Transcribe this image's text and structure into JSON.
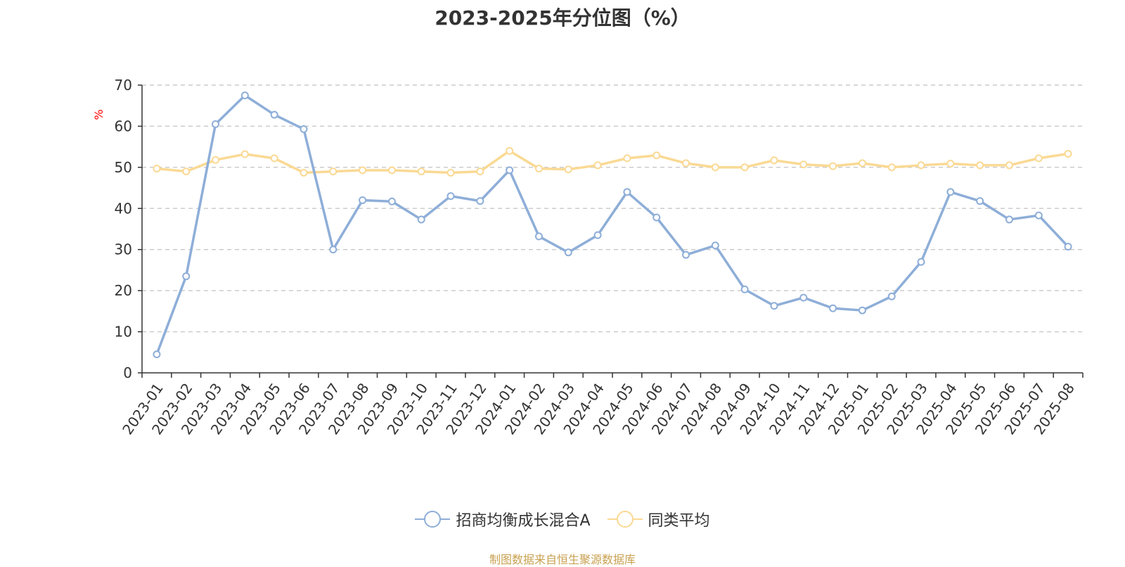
{
  "chart_data": {
    "type": "line",
    "title": "2023-2025年分位图（%）",
    "ylabel": "%",
    "xlabel": "",
    "ylim": [
      0,
      70
    ],
    "yticks": [
      0,
      10,
      20,
      30,
      40,
      50,
      60,
      70
    ],
    "grid": true,
    "legend_position": "bottom",
    "categories": [
      "2023-01",
      "2023-02",
      "2023-03",
      "2023-04",
      "2023-05",
      "2023-06",
      "2023-07",
      "2023-08",
      "2023-09",
      "2023-10",
      "2023-11",
      "2023-12",
      "2024-01",
      "2024-02",
      "2024-03",
      "2024-04",
      "2024-05",
      "2024-06",
      "2024-07",
      "2024-08",
      "2024-09",
      "2024-10",
      "2024-11",
      "2024-12",
      "2025-01",
      "2025-02",
      "2025-03",
      "2025-04",
      "2025-05",
      "2025-06",
      "2025-07",
      "2025-08"
    ],
    "series": [
      {
        "name": "招商均衡成长混合A",
        "color": "#8eaed8",
        "values": [
          4.5,
          23.5,
          60.5,
          67.5,
          62.8,
          59.3,
          30.0,
          42.0,
          41.7,
          37.3,
          43.0,
          41.8,
          49.3,
          33.2,
          29.3,
          33.5,
          44.0,
          37.8,
          28.7,
          31.0,
          20.3,
          16.3,
          18.3,
          15.7,
          15.2,
          18.6,
          27.0,
          44.0,
          41.8,
          37.3,
          38.3,
          30.7
        ]
      },
      {
        "name": "同类平均",
        "color": "#fad994",
        "values": [
          49.7,
          49.0,
          51.8,
          53.2,
          52.2,
          48.7,
          49.0,
          49.3,
          49.3,
          49.0,
          48.7,
          49.0,
          54.0,
          49.7,
          49.5,
          50.5,
          52.2,
          52.9,
          51.0,
          50.0,
          50.0,
          51.7,
          50.7,
          50.3,
          51.0,
          50.0,
          50.5,
          50.9,
          50.5,
          50.5,
          52.2,
          53.3
        ]
      }
    ]
  },
  "footer": {
    "source": "制图数据来自恒生聚源数据库"
  }
}
